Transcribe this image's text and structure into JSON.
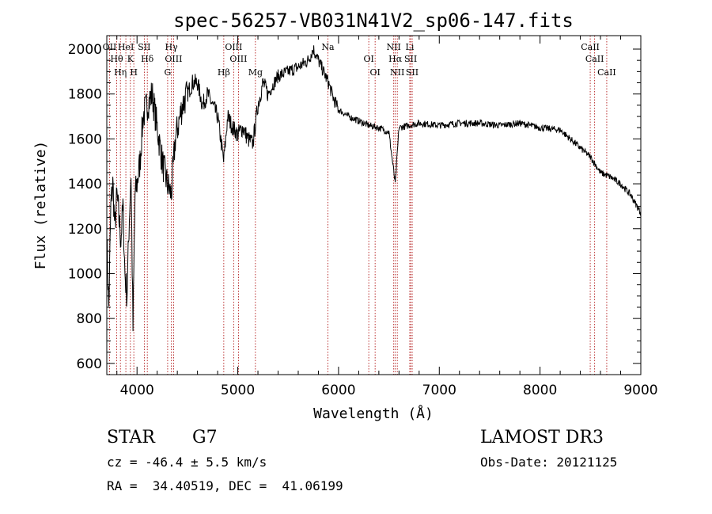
{
  "chart_data": {
    "type": "line",
    "title": "spec-56257-VB031N41V2_sp06-147.fits",
    "xlabel": "Wavelength (Å)",
    "ylabel": "Flux (relative)",
    "xlim": [
      3700,
      9000
    ],
    "ylim": [
      550,
      2060
    ],
    "x_ticks": [
      4000,
      5000,
      6000,
      7000,
      8000,
      9000
    ],
    "y_ticks": [
      600,
      800,
      1000,
      1200,
      1400,
      1600,
      1800,
      2000
    ],
    "grid": false,
    "series": [
      {
        "name": "flux",
        "x": [
          3700,
          3720,
          3740,
          3760,
          3780,
          3800,
          3820,
          3840,
          3860,
          3880,
          3900,
          3920,
          3940,
          3960,
          3980,
          4000,
          4030,
          4060,
          4100,
          4150,
          4200,
          4250,
          4300,
          4340,
          4380,
          4450,
          4500,
          4550,
          4600,
          4650,
          4700,
          4750,
          4800,
          4860,
          4900,
          4950,
          5000,
          5050,
          5100,
          5150,
          5200,
          5250,
          5300,
          5400,
          5500,
          5600,
          5700,
          5750,
          5800,
          5850,
          5900,
          5950,
          6000,
          6100,
          6200,
          6300,
          6400,
          6500,
          6563,
          6600,
          6700,
          6800,
          7000,
          7200,
          7400,
          7600,
          7800,
          8000,
          8200,
          8300,
          8400,
          8500,
          8600,
          8700,
          8800,
          8900,
          9000
        ],
        "y": [
          1150,
          850,
          1300,
          1400,
          1200,
          1350,
          1250,
          1150,
          1300,
          1000,
          900,
          1200,
          1450,
          750,
          1350,
          1400,
          1500,
          1700,
          1750,
          1800,
          1650,
          1500,
          1400,
          1350,
          1600,
          1750,
          1800,
          1850,
          1850,
          1750,
          1800,
          1750,
          1700,
          1500,
          1700,
          1650,
          1620,
          1650,
          1600,
          1580,
          1750,
          1850,
          1800,
          1880,
          1900,
          1920,
          1950,
          2000,
          1950,
          1900,
          1850,
          1780,
          1730,
          1700,
          1680,
          1660,
          1650,
          1630,
          1400,
          1650,
          1660,
          1670,
          1660,
          1670,
          1670,
          1660,
          1670,
          1650,
          1640,
          1600,
          1560,
          1520,
          1450,
          1430,
          1400,
          1350,
          1270
        ]
      }
    ],
    "lines": [
      {
        "wavelength": 3727,
        "label": "OII"
      },
      {
        "wavelength": 3798,
        "label": "Hθ"
      },
      {
        "wavelength": 3835,
        "label": "Hη"
      },
      {
        "wavelength": 3889,
        "label": "HeI"
      },
      {
        "wavelength": 3934,
        "label": "K"
      },
      {
        "wavelength": 3968,
        "label": "H"
      },
      {
        "wavelength": 4072,
        "label": "SII"
      },
      {
        "wavelength": 4102,
        "label": "Hδ"
      },
      {
        "wavelength": 4304,
        "label": "G"
      },
      {
        "wavelength": 4341,
        "label": "Hγ"
      },
      {
        "wavelength": 4363,
        "label": "OIII"
      },
      {
        "wavelength": 4861,
        "label": "Hβ"
      },
      {
        "wavelength": 4959,
        "label": "OIII"
      },
      {
        "wavelength": 5007,
        "label": "OIII"
      },
      {
        "wavelength": 5175,
        "label": "Mg"
      },
      {
        "wavelength": 5894,
        "label": "Na"
      },
      {
        "wavelength": 6300,
        "label": "OI"
      },
      {
        "wavelength": 6363,
        "label": "OI"
      },
      {
        "wavelength": 6548,
        "label": "NII"
      },
      {
        "wavelength": 6563,
        "label": "Hα"
      },
      {
        "wavelength": 6583,
        "label": "NII"
      },
      {
        "wavelength": 6707,
        "label": "Li"
      },
      {
        "wavelength": 6716,
        "label": "SII"
      },
      {
        "wavelength": 6731,
        "label": "SII"
      },
      {
        "wavelength": 8498,
        "label": "CaII"
      },
      {
        "wavelength": 8542,
        "label": "CaII"
      },
      {
        "wavelength": 8662,
        "label": "CaII"
      }
    ]
  },
  "info": {
    "class": "STAR",
    "subclass": "G7",
    "survey": "LAMOST DR3",
    "redshift": "cz = -46.4 ± 5.5 km/s",
    "obs_date": "Obs-Date: 20121125",
    "coords": "RA =  34.40519, DEC =  41.06199"
  },
  "colors": {
    "axis": "#000000",
    "spectrum": "#000000",
    "line_marker": "#aa0000"
  }
}
